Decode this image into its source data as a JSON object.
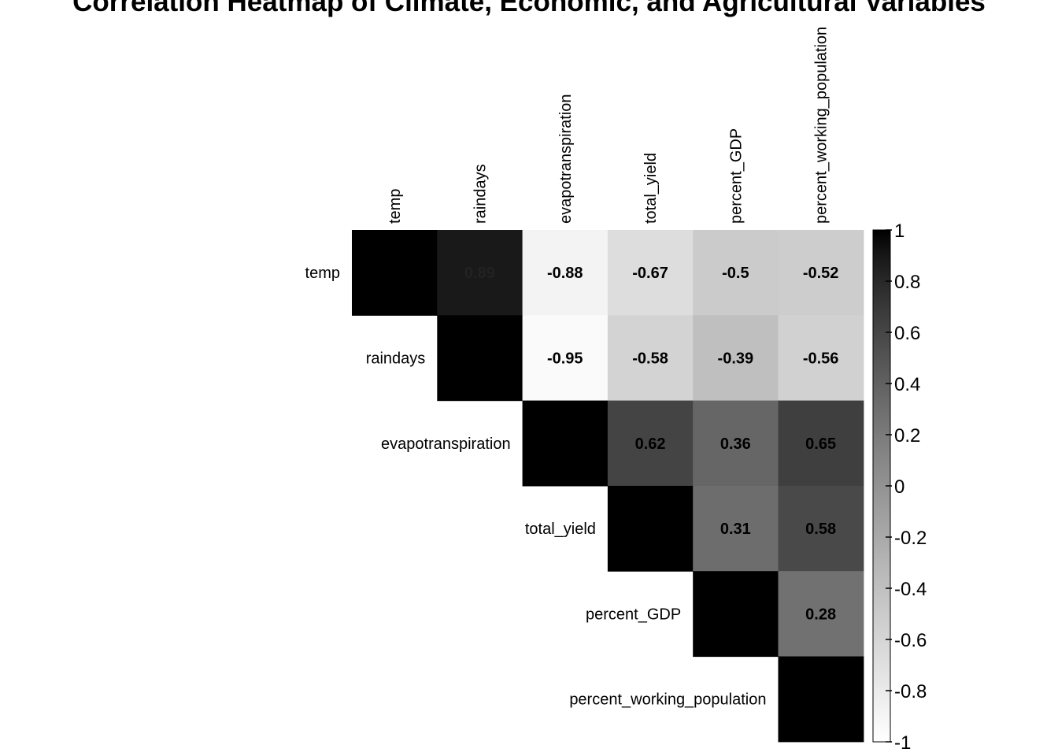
{
  "chart_data": {
    "type": "heatmap",
    "title": "Correlation Heatmap of Climate, Economic, and Agricultural Variables",
    "variables": [
      "temp",
      "raindays",
      "evapotranspiration",
      "total_yield",
      "percent_GDP",
      "percent_working_population"
    ],
    "matrix": [
      [
        1,
        0.89,
        -0.88,
        -0.67,
        -0.5,
        -0.52
      ],
      [
        0.89,
        1,
        -0.95,
        -0.58,
        -0.39,
        -0.56
      ],
      [
        -0.88,
        -0.95,
        1,
        0.62,
        0.36,
        0.65
      ],
      [
        -0.67,
        -0.58,
        0.62,
        1,
        0.31,
        0.58
      ],
      [
        -0.5,
        -0.39,
        0.36,
        0.31,
        1,
        0.28
      ],
      [
        -0.52,
        -0.56,
        0.65,
        0.58,
        0.28,
        1
      ]
    ],
    "value_labels": [
      [
        null,
        "0.89",
        "-0.88",
        "-0.67",
        "-0.5",
        "-0.52"
      ],
      [
        null,
        null,
        "-0.95",
        "-0.58",
        "-0.39",
        "-0.56"
      ],
      [
        null,
        null,
        null,
        "0.62",
        "0.36",
        "0.65"
      ],
      [
        null,
        null,
        null,
        null,
        "0.31",
        "0.58"
      ],
      [
        null,
        null,
        null,
        null,
        null,
        "0.28"
      ],
      [
        null,
        null,
        null,
        null,
        null,
        null
      ]
    ],
    "display": "upper-triangle",
    "colorbar": {
      "range": [
        -1,
        1
      ],
      "ticks": [
        "1",
        "0.8",
        "0.6",
        "0.4",
        "0.2",
        "0",
        "-0.2",
        "-0.4",
        "-0.6",
        "-0.8",
        "-1"
      ],
      "low_color": "#ffffff",
      "high_color": "#000000"
    }
  }
}
